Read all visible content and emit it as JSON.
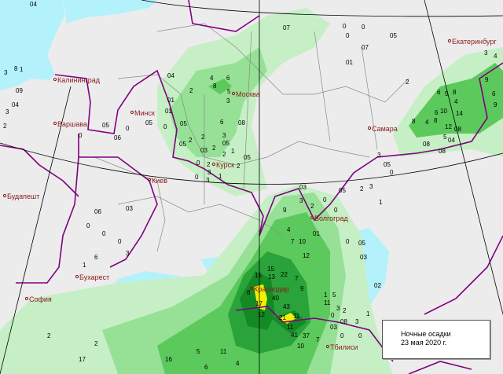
{
  "legend": {
    "title": "Ночные осадки",
    "date": "23 мая 2020 г."
  },
  "colors": {
    "land": "#ececec",
    "sea": "#b4f2fb",
    "precip_light": "#c6efc6",
    "precip_low": "#96e196",
    "precip_mid": "#5cc95c",
    "precip_high": "#2aa33a",
    "precip_heavy": "#148a24",
    "precip_extreme": "#f2f200",
    "country_border": "#800080",
    "region_border": "#8a8a8a"
  },
  "cities": [
    "Калининград",
    "Варшава",
    "Минск",
    "Москва",
    "Киев",
    "Курск",
    "Самара",
    "Екатеринбург",
    "Будапешт",
    "Волгоград",
    "Бухарест",
    "София",
    "Краснодар",
    "Тбилиси"
  ],
  "precip_labels": [
    "04",
    "3",
    "8",
    "1",
    "09",
    "04",
    "3",
    "2",
    "05",
    "0",
    "06",
    "01",
    "05",
    "0",
    "0",
    "01",
    "04",
    "2",
    "8",
    "6",
    "4",
    "5",
    "3",
    "3",
    "2",
    "6",
    "05",
    "2",
    "08",
    "05",
    "03",
    "2",
    "1",
    "2",
    "3",
    "0",
    "1",
    "3",
    "0",
    "2",
    "05",
    "05",
    "2",
    "07",
    "0",
    "0",
    "0",
    "07",
    "01",
    "05",
    "2",
    "6",
    "5",
    "8",
    "4",
    "10",
    "14",
    "8",
    "4",
    "8",
    "12",
    "08",
    "6",
    "5",
    "08",
    "08",
    "04",
    "3",
    "4",
    "6",
    "9",
    "9",
    "05",
    "3",
    "0",
    "05",
    "0",
    "0",
    "2",
    "3",
    "1",
    "03",
    "3",
    "2",
    "9",
    "4",
    "7",
    "10",
    "12",
    "15",
    "22",
    "13",
    "15",
    "7",
    "9",
    "8",
    "17",
    "40",
    "12",
    "43",
    "21",
    "11",
    "11",
    "41",
    "37",
    "10",
    "7",
    "11",
    "5",
    "0",
    "1",
    "3",
    "08",
    "03",
    "0",
    "2",
    "3",
    "0",
    "1",
    "03",
    "05",
    "0",
    "02",
    "01",
    "0",
    "06",
    "03",
    "0",
    "0",
    "1",
    "6",
    "3",
    "2",
    "2",
    "17",
    "16",
    "5",
    "11",
    "4",
    "6"
  ]
}
